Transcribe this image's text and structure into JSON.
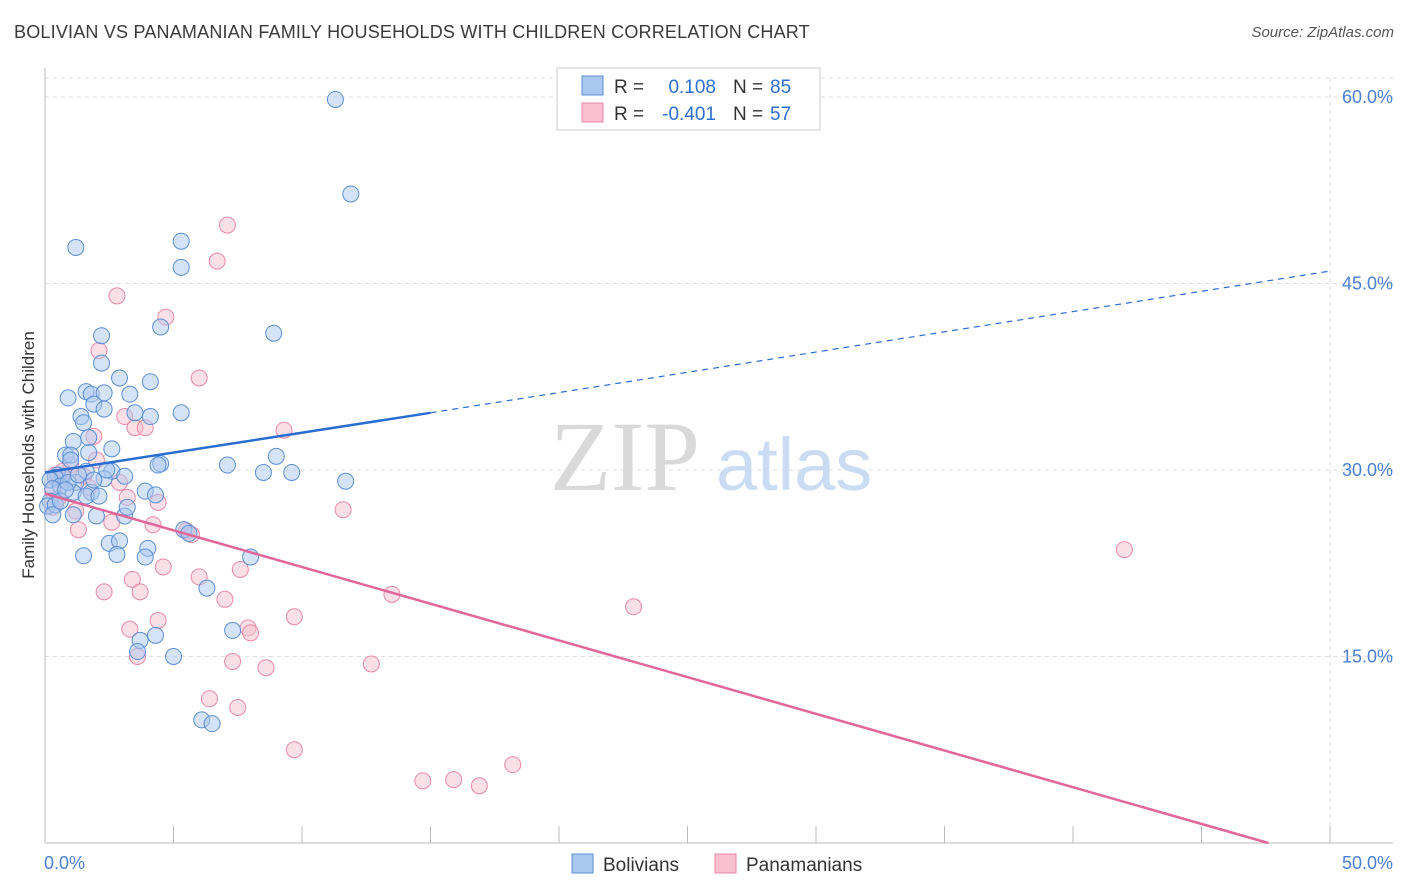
{
  "title": "BOLIVIAN VS PANAMANIAN FAMILY HOUSEHOLDS WITH CHILDREN CORRELATION CHART",
  "source": "Source: ZipAtlas.com",
  "watermark": {
    "zip": "ZIP",
    "atlas": "atlas"
  },
  "colors": {
    "blue_fill": "#a9c8f0",
    "blue_stroke": "#5b8fd6",
    "blue_line": "#2a6dd0",
    "pink_fill": "#f7bfd0",
    "pink_stroke": "#e88aa6",
    "pink_line": "#e0679a",
    "axis_label": "#4a7fd4",
    "grid": "#dddddd"
  },
  "legend": {
    "rows": [
      {
        "r_label": "R =",
        "r_value": "0.108",
        "n_label": "N =",
        "n_value": "85"
      },
      {
        "r_label": "R =",
        "r_value": "-0.401",
        "n_label": "N =",
        "n_value": "57"
      }
    ]
  },
  "bottom_legend": {
    "blue": "Bolivians",
    "pink": "Panamanians"
  },
  "chart_data": {
    "type": "scatter",
    "ylabel": "Family Households with Children",
    "xlim": [
      0,
      50
    ],
    "ylim": [
      0,
      60
    ],
    "x_tick_labels": [
      "0.0%",
      "50.0%"
    ],
    "y_ticks": [
      15,
      30,
      45,
      60
    ],
    "y_tick_labels": [
      "15.0%",
      "30.0%",
      "45.0%",
      "60.0%"
    ],
    "series": [
      {
        "name": "Bolivians",
        "r": 0.108,
        "n": 85,
        "trend": {
          "x0": 0,
          "y0": 29.8,
          "x1": 15,
          "y1": 34.6,
          "x_dash_end": 50,
          "y_dash_end": 46.0
        },
        "points": [
          [
            11.3,
            59.8
          ],
          [
            11.9,
            52.2
          ],
          [
            1.2,
            47.9
          ],
          [
            5.3,
            48.4
          ],
          [
            5.3,
            46.3
          ],
          [
            2.2,
            40.8
          ],
          [
            4.5,
            41.5
          ],
          [
            8.9,
            41.0
          ],
          [
            2.2,
            38.6
          ],
          [
            2.9,
            37.4
          ],
          [
            4.1,
            37.1
          ],
          [
            1.6,
            36.3
          ],
          [
            1.8,
            36.1
          ],
          [
            2.3,
            36.2
          ],
          [
            3.3,
            36.1
          ],
          [
            0.9,
            35.8
          ],
          [
            1.9,
            35.3
          ],
          [
            2.3,
            34.9
          ],
          [
            5.3,
            34.6
          ],
          [
            3.5,
            34.6
          ],
          [
            4.1,
            34.3
          ],
          [
            1.4,
            34.3
          ],
          [
            1.5,
            33.8
          ],
          [
            1.7,
            32.6
          ],
          [
            1.1,
            32.3
          ],
          [
            2.6,
            31.7
          ],
          [
            1.7,
            31.4
          ],
          [
            0.8,
            31.2
          ],
          [
            1.0,
            31.2
          ],
          [
            9.0,
            31.1
          ],
          [
            1.0,
            30.8
          ],
          [
            4.5,
            30.5
          ],
          [
            4.4,
            30.4
          ],
          [
            7.1,
            30.4
          ],
          [
            2.6,
            29.9
          ],
          [
            1.6,
            29.9
          ],
          [
            8.5,
            29.8
          ],
          [
            9.6,
            29.8
          ],
          [
            0.5,
            29.6
          ],
          [
            0.7,
            29.5
          ],
          [
            0.4,
            29.4
          ],
          [
            0.2,
            29.2
          ],
          [
            3.1,
            29.5
          ],
          [
            2.3,
            29.3
          ],
          [
            11.7,
            29.1
          ],
          [
            1.2,
            29.0
          ],
          [
            0.6,
            28.7
          ],
          [
            0.3,
            28.5
          ],
          [
            1.8,
            28.2
          ],
          [
            1.1,
            28.2
          ],
          [
            3.9,
            28.3
          ],
          [
            4.3,
            28.0
          ],
          [
            0.2,
            27.5
          ],
          [
            0.1,
            27.1
          ],
          [
            0.4,
            27.2
          ],
          [
            1.1,
            26.4
          ],
          [
            0.3,
            26.4
          ],
          [
            2.0,
            26.3
          ],
          [
            3.1,
            26.3
          ],
          [
            5.4,
            25.2
          ],
          [
            5.6,
            24.9
          ],
          [
            2.5,
            24.1
          ],
          [
            2.9,
            24.3
          ],
          [
            4.0,
            23.7
          ],
          [
            8.0,
            23.0
          ],
          [
            3.9,
            23.0
          ],
          [
            1.5,
            23.1
          ],
          [
            2.8,
            23.2
          ],
          [
            6.3,
            20.5
          ],
          [
            7.3,
            17.1
          ],
          [
            3.7,
            16.3
          ],
          [
            4.3,
            16.7
          ],
          [
            3.6,
            15.4
          ],
          [
            5.0,
            15.0
          ],
          [
            6.1,
            9.9
          ],
          [
            6.5,
            9.6
          ],
          [
            1.6,
            27.9
          ],
          [
            2.4,
            30.0
          ],
          [
            0.9,
            29.0
          ],
          [
            1.3,
            29.6
          ],
          [
            2.1,
            27.9
          ],
          [
            3.2,
            27.0
          ],
          [
            0.6,
            27.5
          ],
          [
            1.9,
            29.2
          ],
          [
            0.8,
            28.4
          ]
        ]
      },
      {
        "name": "Panamanians",
        "r": -0.401,
        "n": 57,
        "trend": {
          "x0": 0,
          "y0": 28.1,
          "x1": 47.6,
          "y1": 0.0
        },
        "points": [
          [
            7.1,
            49.7
          ],
          [
            6.7,
            46.8
          ],
          [
            2.8,
            44.0
          ],
          [
            4.7,
            42.3
          ],
          [
            2.1,
            39.6
          ],
          [
            6.0,
            37.4
          ],
          [
            3.1,
            34.3
          ],
          [
            3.5,
            33.4
          ],
          [
            3.9,
            33.4
          ],
          [
            9.3,
            33.2
          ],
          [
            1.9,
            32.7
          ],
          [
            1.0,
            30.4
          ],
          [
            0.7,
            29.9
          ],
          [
            0.4,
            29.6
          ],
          [
            0.6,
            29.2
          ],
          [
            2.9,
            29.0
          ],
          [
            1.5,
            29.5
          ],
          [
            3.2,
            27.8
          ],
          [
            0.3,
            28.3
          ],
          [
            0.5,
            27.7
          ],
          [
            4.4,
            27.4
          ],
          [
            11.6,
            26.8
          ],
          [
            2.6,
            25.8
          ],
          [
            4.2,
            25.6
          ],
          [
            1.3,
            25.2
          ],
          [
            5.5,
            25.1
          ],
          [
            5.7,
            24.8
          ],
          [
            7.6,
            22.0
          ],
          [
            4.6,
            22.2
          ],
          [
            6.0,
            21.4
          ],
          [
            3.4,
            21.2
          ],
          [
            2.3,
            20.2
          ],
          [
            3.7,
            20.2
          ],
          [
            13.5,
            20.0
          ],
          [
            7.0,
            19.6
          ],
          [
            22.9,
            19.0
          ],
          [
            9.7,
            18.2
          ],
          [
            4.4,
            17.9
          ],
          [
            3.3,
            17.2
          ],
          [
            7.9,
            17.3
          ],
          [
            8.0,
            16.9
          ],
          [
            3.6,
            15.0
          ],
          [
            7.3,
            14.6
          ],
          [
            8.6,
            14.1
          ],
          [
            12.7,
            14.4
          ],
          [
            6.4,
            11.6
          ],
          [
            7.5,
            10.9
          ],
          [
            9.7,
            7.5
          ],
          [
            18.2,
            6.3
          ],
          [
            14.7,
            5.0
          ],
          [
            15.9,
            5.1
          ],
          [
            16.9,
            4.6
          ],
          [
            42.0,
            23.6
          ],
          [
            1.2,
            26.7
          ],
          [
            0.3,
            27.0
          ],
          [
            2.0,
            30.8
          ],
          [
            1.7,
            28.6
          ]
        ]
      }
    ]
  }
}
